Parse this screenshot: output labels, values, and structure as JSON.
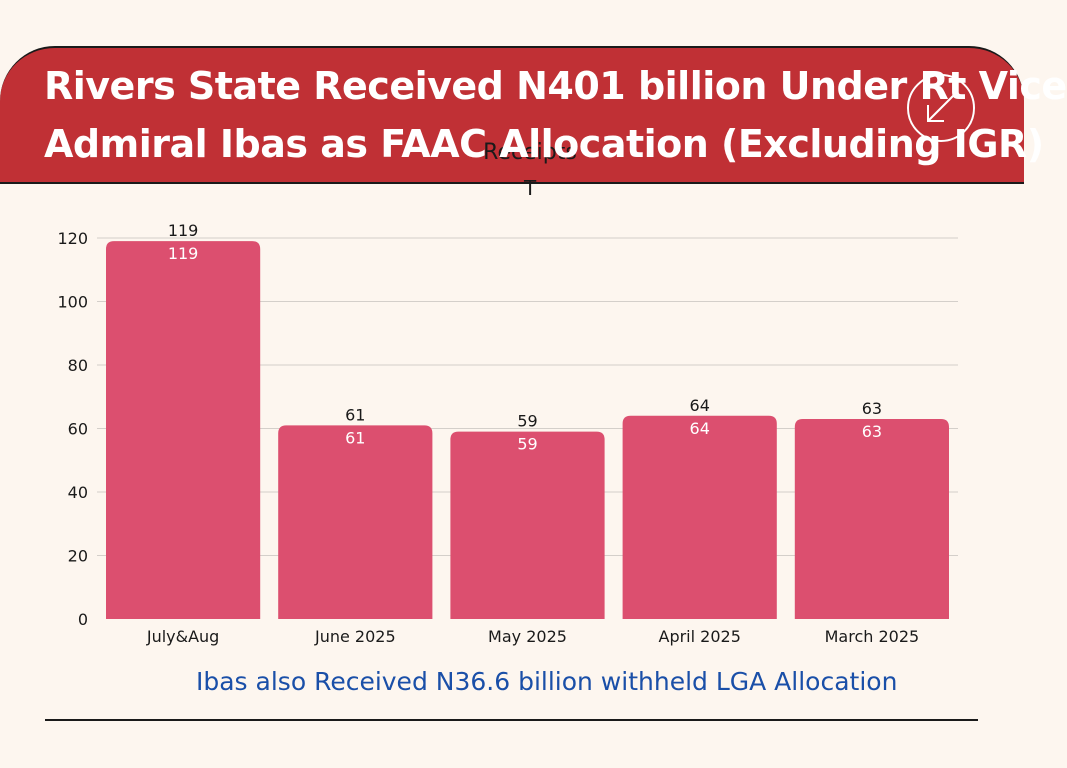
{
  "header": {
    "title_line1": "Rivers State Received N401 billion Under Rt Vice",
    "title_line2": "Admiral Ibas as FAAC Allocation (Excluding IGR)"
  },
  "icons": {
    "download": "download-arrow-icon"
  },
  "colors": {
    "banner": "#c03035",
    "bar": "#dc4f6f",
    "caption": "#1a4fa8",
    "background": "#fdf6ef"
  },
  "chart_data": {
    "type": "bar",
    "title": "Receipts",
    "title_mark": "T",
    "categories": [
      "July&Aug",
      "June 2025",
      "May 2025",
      "April 2025",
      "March 2025"
    ],
    "values": [
      119,
      61,
      59,
      64,
      63
    ],
    "ylim": [
      0,
      120
    ],
    "yticks": [
      0,
      20,
      40,
      60,
      80,
      100,
      120
    ],
    "xlabel": "",
    "ylabel": "",
    "grid": true
  },
  "footer": {
    "caption": "Ibas also Received N36.6 billion withheld LGA Allocation"
  }
}
